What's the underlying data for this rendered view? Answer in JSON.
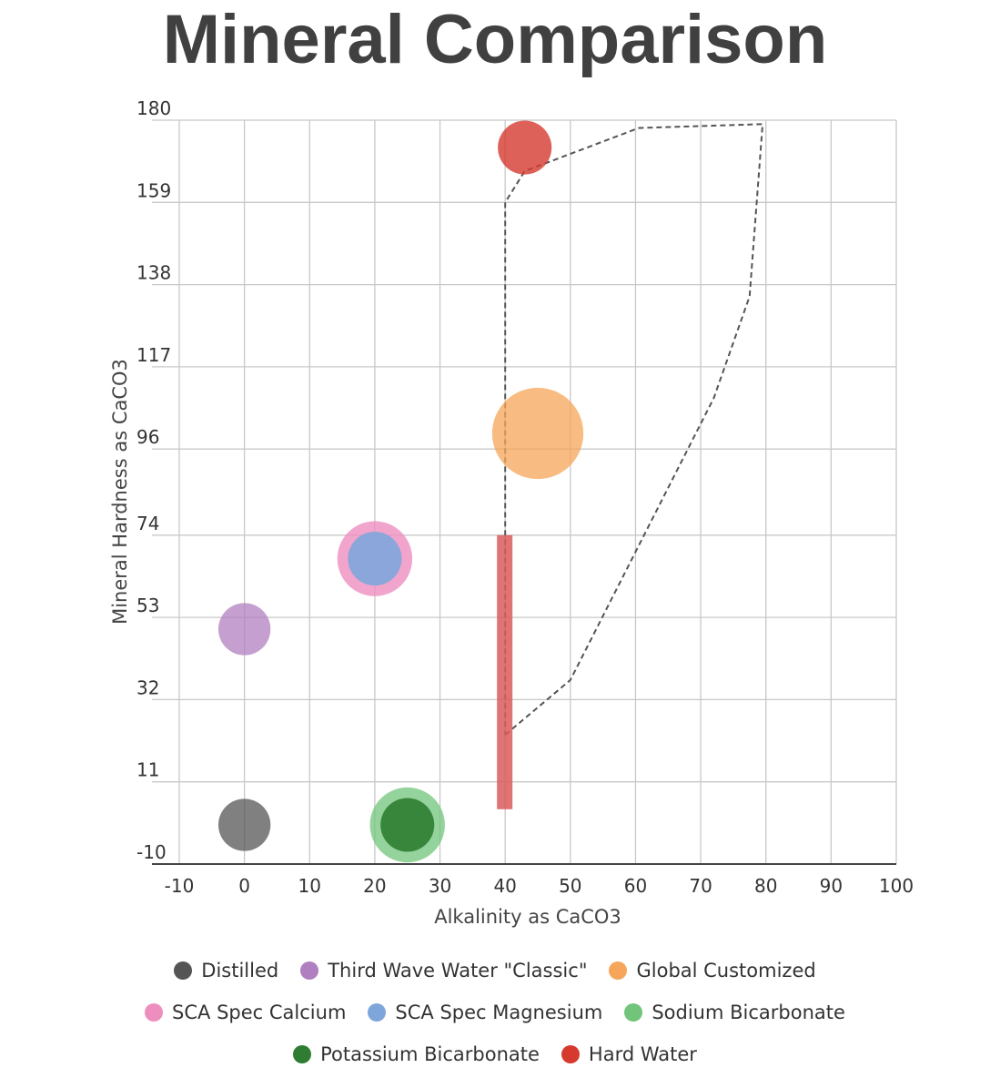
{
  "chart_data": {
    "type": "scatter",
    "title": "Mineral Comparison",
    "xlabel": "Alkalinity as CaCO3",
    "ylabel": "Mineral Hardness as CaCO3",
    "x_ticks": [
      -10,
      0,
      10,
      20,
      30,
      40,
      50,
      60,
      70,
      80,
      90,
      100
    ],
    "y_ticks": [
      -10,
      11,
      32,
      53,
      74,
      96,
      117,
      138,
      159,
      180
    ],
    "xlim": [
      -10,
      100
    ],
    "ylim": [
      -10,
      180
    ],
    "grid": true,
    "legend_position": "bottom",
    "series": [
      {
        "name": "Distilled",
        "color": "#555555",
        "x": 0,
        "y": 0,
        "size": 16,
        "opacity": 0.75
      },
      {
        "name": "Third Wave Water \"Classic\"",
        "color": "#b07fbf",
        "x": 0,
        "y": 50,
        "size": 16,
        "opacity": 0.75
      },
      {
        "name": "Global Customized",
        "color": "#f6a65a",
        "x": 45,
        "y": 100,
        "size": 28,
        "opacity": 0.75
      },
      {
        "name": "SCA Spec Calcium",
        "color": "#ee8ebf",
        "x": 20,
        "y": 68,
        "size": 23,
        "opacity": 0.8
      },
      {
        "name": "SCA Spec Magnesium",
        "color": "#7fa6db",
        "x": 20,
        "y": 68,
        "size": 16.5,
        "opacity": 0.9
      },
      {
        "name": "Sodium Bicarbonate",
        "color": "#72c47b",
        "x": 25,
        "y": 0,
        "size": 23,
        "opacity": 0.75
      },
      {
        "name": "Potassium Bicarbonate",
        "color": "#2e7d32",
        "x": 25,
        "y": 0,
        "size": 16.5,
        "opacity": 0.9
      },
      {
        "name": "Hard Water",
        "color": "#d63a2f",
        "x": 43,
        "y": 173,
        "size": 16.5,
        "opacity": 0.8
      }
    ],
    "range_bar": {
      "color": "#d95c5c",
      "x": 40,
      "y_min": 4,
      "y_max": 74
    },
    "target_region": {
      "color": "#555555",
      "points": [
        [
          40,
          23
        ],
        [
          50,
          37
        ],
        [
          72,
          109
        ],
        [
          77.5,
          135
        ],
        [
          79.5,
          179
        ],
        [
          60.5,
          178
        ],
        [
          43,
          167
        ],
        [
          40,
          159
        ],
        [
          40,
          23
        ]
      ]
    }
  },
  "legend_rows": [
    [
      0,
      1,
      2
    ],
    [
      3,
      4,
      5
    ],
    [
      6,
      7
    ]
  ]
}
